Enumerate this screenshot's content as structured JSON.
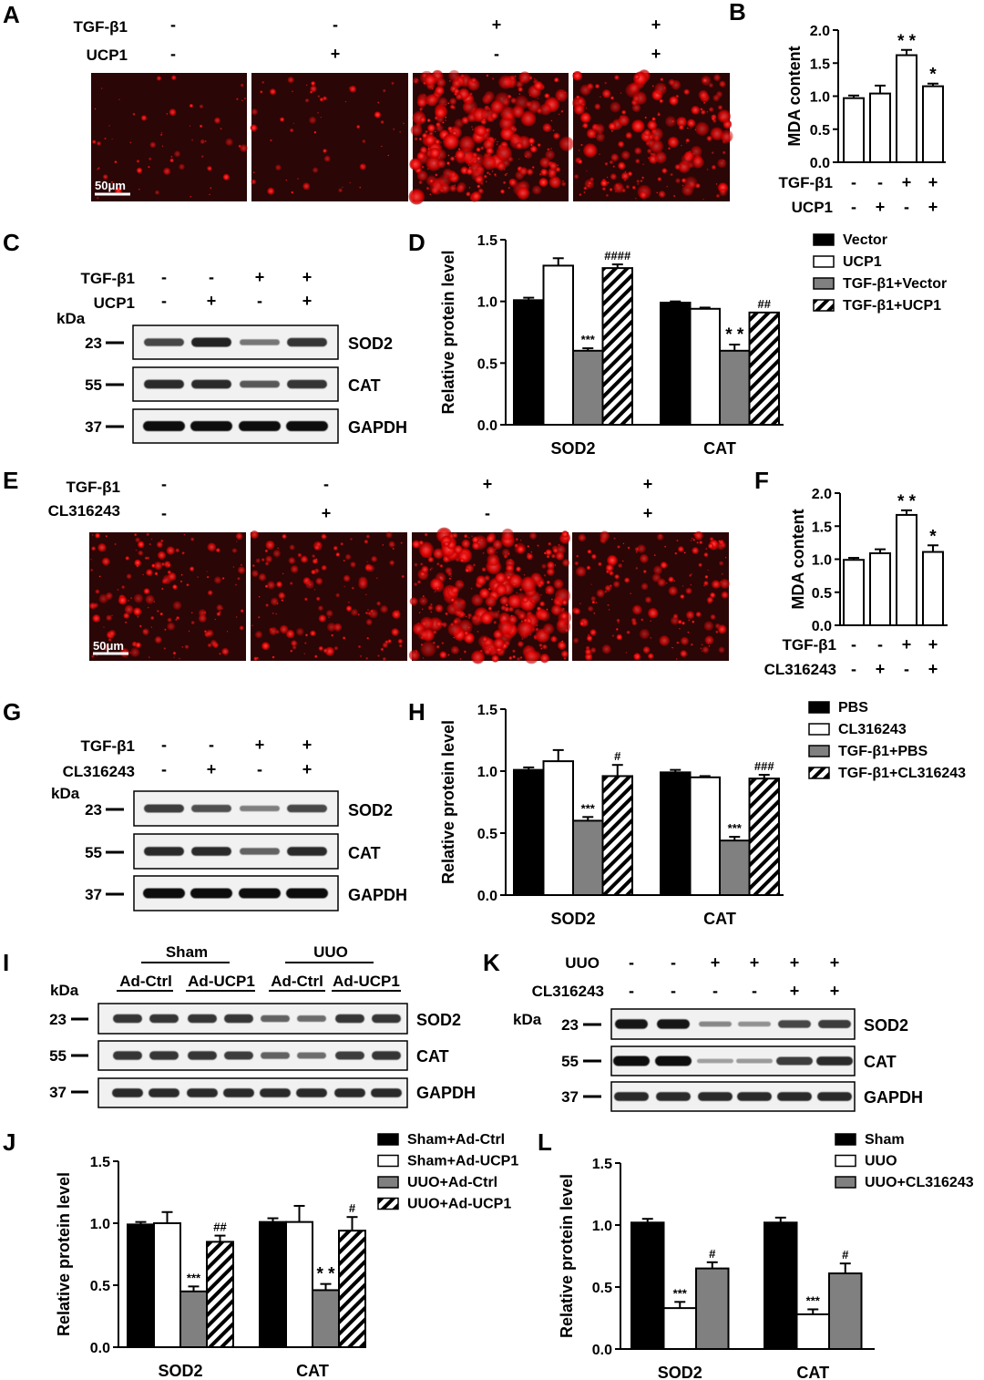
{
  "colors": {
    "black_bar": "#000000",
    "white_bar": "#ffffff",
    "gray_bar": "#808080",
    "fluorescence": "#ff1a1a",
    "micrograph_bg": "#2a0606"
  },
  "panels": {
    "A": {
      "label": "A",
      "rows": [
        {
          "name": "TGF-β1",
          "signs": [
            "-",
            "-",
            "+",
            "+"
          ]
        },
        {
          "name": "UCP1",
          "signs": [
            "-",
            "+",
            "-",
            "+"
          ]
        }
      ],
      "scale_bar": "50μm"
    },
    "C": {
      "label": "C",
      "rows": [
        {
          "name": "TGF-β1",
          "signs": [
            "-",
            "-",
            "+",
            "+"
          ]
        },
        {
          "name": "UCP1",
          "signs": [
            "-",
            "+",
            "-",
            "+"
          ]
        }
      ],
      "kda_label": "kDa",
      "blots": [
        {
          "marker": "23",
          "band": "SOD2"
        },
        {
          "marker": "55",
          "band": "CAT"
        },
        {
          "marker": "37",
          "band": "GAPDH"
        }
      ]
    },
    "E": {
      "label": "E",
      "rows": [
        {
          "name": "TGF-β1",
          "signs": [
            "-",
            "-",
            "+",
            "+"
          ]
        },
        {
          "name": "CL316243",
          "signs": [
            "-",
            "+",
            "-",
            "+"
          ]
        }
      ],
      "scale_bar": "50μm"
    },
    "G": {
      "label": "G",
      "rows": [
        {
          "name": "TGF-β1",
          "signs": [
            "-",
            "-",
            "+",
            "+"
          ]
        },
        {
          "name": "CL316243",
          "signs": [
            "-",
            "+",
            "-",
            "+"
          ]
        }
      ],
      "kda_label": "kDa",
      "blots": [
        {
          "marker": "23",
          "band": "SOD2"
        },
        {
          "marker": "55",
          "band": "CAT"
        },
        {
          "marker": "37",
          "band": "GAPDH"
        }
      ]
    },
    "I": {
      "label": "I",
      "groups": [
        "Sham",
        "UUO"
      ],
      "lanes": [
        "Ad-Ctrl",
        "Ad-UCP1",
        "Ad-Ctrl",
        "Ad-UCP1"
      ],
      "kda_label": "kDa",
      "blots": [
        {
          "marker": "23",
          "band": "SOD2"
        },
        {
          "marker": "55",
          "band": "CAT"
        },
        {
          "marker": "37",
          "band": "GAPDH"
        }
      ]
    },
    "K": {
      "label": "K",
      "rows": [
        {
          "name": "UUO",
          "signs": [
            "-",
            "-",
            "+",
            "+",
            "+",
            "+"
          ]
        },
        {
          "name": "CL316243",
          "signs": [
            "-",
            "-",
            "-",
            "-",
            "+",
            "+"
          ]
        }
      ],
      "kda_label": "kDa",
      "blots": [
        {
          "marker": "23",
          "band": "SOD2"
        },
        {
          "marker": "55",
          "band": "CAT"
        },
        {
          "marker": "37",
          "band": "GAPDH"
        }
      ]
    }
  },
  "chart_data": [
    {
      "panel": "B",
      "type": "bar",
      "ylabel": "MDA content",
      "ylim": [
        0,
        2.0
      ],
      "yticks": [
        "0.0",
        "0.5",
        "1.0",
        "1.5",
        "2.0"
      ],
      "values": [
        0.97,
        1.04,
        1.62,
        1.15
      ],
      "errors": [
        0.04,
        0.12,
        0.08,
        0.04
      ],
      "annotations": [
        "",
        "",
        "* *",
        "*"
      ],
      "rows": [
        {
          "name": "TGF-β1",
          "signs": [
            "-",
            "-",
            "+",
            "+"
          ]
        },
        {
          "name": "UCP1",
          "signs": [
            "-",
            "+",
            "-",
            "+"
          ]
        }
      ]
    },
    {
      "panel": "D",
      "type": "bar",
      "ylabel": "Relative protein level",
      "ylim": [
        0,
        1.5
      ],
      "yticks": [
        "0.0",
        "0.5",
        "1.0",
        "1.5"
      ],
      "categories": [
        "SOD2",
        "CAT"
      ],
      "series": [
        {
          "name": "Vector",
          "style": "black",
          "values": [
            1.01,
            0.99
          ],
          "errors": [
            0.02,
            0.01
          ],
          "annotations": [
            "",
            ""
          ]
        },
        {
          "name": "UCP1",
          "style": "white",
          "values": [
            1.29,
            0.94
          ],
          "errors": [
            0.06,
            0.01
          ],
          "annotations": [
            "",
            ""
          ]
        },
        {
          "name": "TGF-β1+Vector",
          "style": "gray",
          "values": [
            0.6,
            0.6
          ],
          "errors": [
            0.02,
            0.05
          ],
          "annotations": [
            "***",
            "* *"
          ]
        },
        {
          "name": "TGF-β1+UCP1",
          "style": "hatch",
          "values": [
            1.27,
            0.91
          ],
          "errors": [
            0.03,
            0.0
          ],
          "annotations": [
            "####",
            "##"
          ]
        }
      ]
    },
    {
      "panel": "F",
      "type": "bar",
      "ylabel": "MDA content",
      "ylim": [
        0,
        2.0
      ],
      "yticks": [
        "0.0",
        "0.5",
        "1.0",
        "1.5",
        "2.0"
      ],
      "values": [
        0.99,
        1.09,
        1.67,
        1.11
      ],
      "errors": [
        0.03,
        0.06,
        0.07,
        0.1
      ],
      "annotations": [
        "",
        "",
        "* *",
        "*"
      ],
      "rows": [
        {
          "name": "TGF-β1",
          "signs": [
            "-",
            "-",
            "+",
            "+"
          ]
        },
        {
          "name": "CL316243",
          "signs": [
            "-",
            "+",
            "-",
            "+"
          ]
        }
      ]
    },
    {
      "panel": "H",
      "type": "bar",
      "ylabel": "Relative protein level",
      "ylim": [
        0,
        1.5
      ],
      "yticks": [
        "0.0",
        "0.5",
        "1.0",
        "1.5"
      ],
      "categories": [
        "SOD2",
        "CAT"
      ],
      "series": [
        {
          "name": "PBS",
          "style": "black",
          "values": [
            1.01,
            0.99
          ],
          "errors": [
            0.02,
            0.02
          ],
          "annotations": [
            "",
            ""
          ]
        },
        {
          "name": "CL316243",
          "style": "white",
          "values": [
            1.08,
            0.95
          ],
          "errors": [
            0.09,
            0.01
          ],
          "annotations": [
            "",
            ""
          ]
        },
        {
          "name": "TGF-β1+PBS",
          "style": "gray",
          "values": [
            0.6,
            0.44
          ],
          "errors": [
            0.03,
            0.03
          ],
          "annotations": [
            "***",
            "***"
          ]
        },
        {
          "name": "TGF-β1+CL316243",
          "style": "hatch",
          "values": [
            0.96,
            0.94
          ],
          "errors": [
            0.09,
            0.03
          ],
          "annotations": [
            "#",
            "###"
          ]
        }
      ]
    },
    {
      "panel": "J",
      "type": "bar",
      "ylabel": "Relative protein level",
      "ylim": [
        0,
        1.5
      ],
      "yticks": [
        "0.0",
        "0.5",
        "1.0",
        "1.5"
      ],
      "categories": [
        "SOD2",
        "CAT"
      ],
      "series": [
        {
          "name": "Sham+Ad-Ctrl",
          "style": "black",
          "values": [
            0.99,
            1.01
          ],
          "errors": [
            0.02,
            0.03
          ],
          "annotations": [
            "",
            ""
          ]
        },
        {
          "name": "Sham+Ad-UCP1",
          "style": "white",
          "values": [
            1.0,
            1.01
          ],
          "errors": [
            0.09,
            0.13
          ],
          "annotations": [
            "",
            ""
          ]
        },
        {
          "name": "UUO+Ad-Ctrl",
          "style": "gray",
          "values": [
            0.45,
            0.46
          ],
          "errors": [
            0.04,
            0.05
          ],
          "annotations": [
            "***",
            "* *"
          ]
        },
        {
          "name": "UUO+Ad-UCP1",
          "style": "hatch",
          "values": [
            0.85,
            0.94
          ],
          "errors": [
            0.05,
            0.11
          ],
          "annotations": [
            "##",
            "#"
          ]
        }
      ]
    },
    {
      "panel": "L",
      "type": "bar",
      "ylabel": "Relative protein level",
      "ylim": [
        0,
        1.5
      ],
      "yticks": [
        "0.0",
        "0.5",
        "1.0",
        "1.5"
      ],
      "categories": [
        "SOD2",
        "CAT"
      ],
      "series": [
        {
          "name": "Sham",
          "style": "black",
          "values": [
            1.02,
            1.02
          ],
          "errors": [
            0.03,
            0.04
          ],
          "annotations": [
            "",
            ""
          ]
        },
        {
          "name": "UUO",
          "style": "white",
          "values": [
            0.33,
            0.28
          ],
          "errors": [
            0.05,
            0.04
          ],
          "annotations": [
            "***",
            "***"
          ]
        },
        {
          "name": "UUO+CL316243",
          "style": "gray",
          "values": [
            0.65,
            0.61
          ],
          "errors": [
            0.05,
            0.08
          ],
          "annotations": [
            "#",
            "#"
          ]
        }
      ]
    }
  ]
}
